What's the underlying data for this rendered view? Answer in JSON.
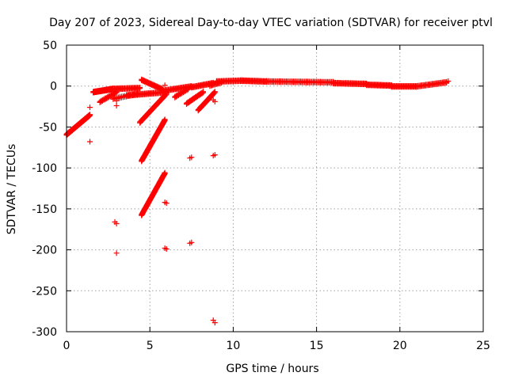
{
  "chart_data": {
    "type": "scatter",
    "title": "Day 207 of 2023, Sidereal Day-to-day VTEC variation (SDTVAR) for receiver ptvl",
    "xlabel": "GPS time / hours",
    "ylabel": "SDTVAR / TECUs",
    "xlim": [
      0,
      25
    ],
    "ylim": [
      -300,
      50
    ],
    "x_ticks": [
      0,
      5,
      10,
      15,
      20,
      25
    ],
    "y_ticks": [
      50,
      0,
      -50,
      -100,
      -150,
      -200,
      -250,
      -300
    ],
    "x_tick_labels": [
      "0",
      "5",
      "10",
      "15",
      "20",
      "25"
    ],
    "y_tick_labels": [
      "50",
      "0",
      "-50",
      "-100",
      "-150",
      "-200",
      "-250",
      "-300"
    ],
    "grid": true,
    "marker": "+",
    "color": "#ff0000",
    "segments": [
      {
        "x0": 0.0,
        "y0": -60,
        "x1": 1.4,
        "y1": -36,
        "n": 45
      },
      {
        "x0": 1.6,
        "y0": -8,
        "x1": 2.8,
        "y1": -4,
        "n": 28
      },
      {
        "x0": 2.0,
        "y0": -20,
        "x1": 3.0,
        "y1": -8,
        "n": 14
      },
      {
        "x0": 2.8,
        "y0": -4,
        "x1": 4.4,
        "y1": -3,
        "n": 24
      },
      {
        "x0": 2.8,
        "y0": -16,
        "x1": 4.3,
        "y1": -10,
        "n": 16
      },
      {
        "x0": 3.6,
        "y0": -12,
        "x1": 6.0,
        "y1": -8,
        "n": 34
      },
      {
        "x0": 4.4,
        "y0": -45,
        "x1": 6.0,
        "y1": -10,
        "n": 30
      },
      {
        "x0": 4.5,
        "y0": 7,
        "x1": 5.8,
        "y1": -5,
        "n": 22
      },
      {
        "x0": 4.5,
        "y0": -92,
        "x1": 5.9,
        "y1": -42,
        "n": 50
      },
      {
        "x0": 4.5,
        "y0": -158,
        "x1": 5.9,
        "y1": -107,
        "n": 50
      },
      {
        "x0": 5.9,
        "y0": -6,
        "x1": 7.5,
        "y1": -1,
        "n": 24
      },
      {
        "x0": 6.5,
        "y0": -14,
        "x1": 7.3,
        "y1": -4,
        "n": 12
      },
      {
        "x0": 7.2,
        "y0": -22,
        "x1": 8.2,
        "y1": -8,
        "n": 16
      },
      {
        "x0": 7.5,
        "y0": -2,
        "x1": 8.8,
        "y1": 3,
        "n": 20
      },
      {
        "x0": 7.9,
        "y0": -30,
        "x1": 8.9,
        "y1": -8,
        "n": 20
      },
      {
        "x0": 8.6,
        "y0": 0,
        "x1": 9.3,
        "y1": 4,
        "n": 10
      },
      {
        "x0": 9.0,
        "y0": 5,
        "x1": 10.5,
        "y1": 6,
        "n": 22
      },
      {
        "x0": 10.5,
        "y0": 6,
        "x1": 12.0,
        "y1": 5,
        "n": 24
      },
      {
        "x0": 12.0,
        "y0": 5,
        "x1": 16.0,
        "y1": 4,
        "n": 48
      },
      {
        "x0": 16.0,
        "y0": 3,
        "x1": 18.0,
        "y1": 2,
        "n": 30
      },
      {
        "x0": 18.0,
        "y0": 1,
        "x1": 19.5,
        "y1": 0,
        "n": 24
      },
      {
        "x0": 19.5,
        "y0": -1,
        "x1": 21.0,
        "y1": -1,
        "n": 22
      },
      {
        "x0": 21.0,
        "y0": -1,
        "x1": 22.8,
        "y1": 4,
        "n": 24
      }
    ],
    "points": [
      {
        "x": 1.4,
        "y": -26
      },
      {
        "x": 1.4,
        "y": -68
      },
      {
        "x": 3.0,
        "y": -24
      },
      {
        "x": 3.0,
        "y": -18
      },
      {
        "x": 2.9,
        "y": -166
      },
      {
        "x": 3.0,
        "y": -168
      },
      {
        "x": 3.0,
        "y": -204
      },
      {
        "x": 5.9,
        "y": 1
      },
      {
        "x": 5.9,
        "y": -142
      },
      {
        "x": 6.0,
        "y": -143
      },
      {
        "x": 5.9,
        "y": -198
      },
      {
        "x": 6.0,
        "y": -199
      },
      {
        "x": 7.4,
        "y": -88
      },
      {
        "x": 7.5,
        "y": -87
      },
      {
        "x": 7.4,
        "y": -192
      },
      {
        "x": 7.5,
        "y": -191
      },
      {
        "x": 8.8,
        "y": -85
      },
      {
        "x": 8.9,
        "y": -84
      },
      {
        "x": 8.8,
        "y": -286
      },
      {
        "x": 8.9,
        "y": -289
      },
      {
        "x": 8.8,
        "y": -17
      },
      {
        "x": 8.9,
        "y": -19
      },
      {
        "x": 9.0,
        "y": 3
      },
      {
        "x": 22.9,
        "y": 6
      }
    ]
  }
}
